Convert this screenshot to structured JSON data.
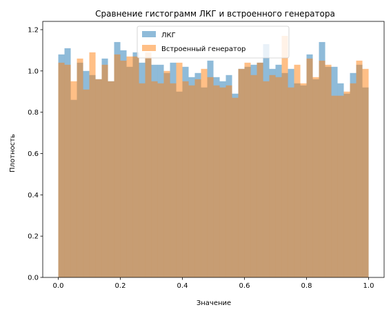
{
  "chart_data": {
    "type": "bar",
    "title": "Сравнение гистограмм ЛКГ и встроенного генератора",
    "xlabel": "Значение",
    "ylabel": "Плотность",
    "xlim": [
      -0.05,
      1.05
    ],
    "ylim": [
      0,
      1.24
    ],
    "x_ticks": [
      "0.0",
      "0.2",
      "0.4",
      "0.6",
      "0.8",
      "1.0"
    ],
    "y_ticks": [
      "0.0",
      "0.2",
      "0.4",
      "0.6",
      "0.8",
      "1.0",
      "1.2"
    ],
    "grid": false,
    "legend_position": "top-center",
    "bins": 50,
    "bin_range": [
      0,
      1
    ],
    "series": [
      {
        "name": "ЛКГ",
        "color": "#1f77b4",
        "alpha": 0.5,
        "values": [
          1.08,
          1.11,
          0.86,
          1.04,
          1.0,
          0.98,
          0.96,
          1.06,
          0.95,
          1.14,
          1.1,
          1.02,
          1.09,
          1.04,
          1.06,
          1.03,
          1.03,
          0.99,
          1.04,
          0.9,
          1.02,
          0.97,
          0.99,
          0.92,
          1.05,
          0.97,
          0.95,
          0.98,
          0.89,
          1.01,
          1.02,
          1.03,
          1.04,
          1.13,
          1.01,
          1.03,
          0.99,
          1.01,
          0.94,
          0.93,
          1.08,
          0.96,
          1.14,
          1.02,
          1.02,
          0.94,
          0.89,
          0.99,
          1.03,
          0.92
        ]
      },
      {
        "name": "Встроенный генератор",
        "color": "#ff7f0e",
        "alpha": 0.5,
        "values": [
          1.04,
          1.03,
          0.95,
          1.06,
          0.91,
          1.09,
          0.96,
          1.03,
          0.95,
          1.08,
          1.05,
          1.07,
          1.07,
          0.94,
          1.09,
          0.95,
          0.94,
          1.0,
          0.94,
          1.04,
          0.95,
          0.93,
          0.96,
          1.01,
          0.97,
          0.93,
          0.92,
          0.93,
          0.87,
          1.01,
          1.04,
          0.98,
          1.04,
          0.95,
          0.98,
          0.97,
          1.17,
          0.92,
          1.03,
          0.94,
          1.06,
          0.97,
          1.05,
          1.03,
          0.88,
          0.88,
          0.9,
          0.94,
          1.05,
          1.01
        ]
      }
    ]
  }
}
